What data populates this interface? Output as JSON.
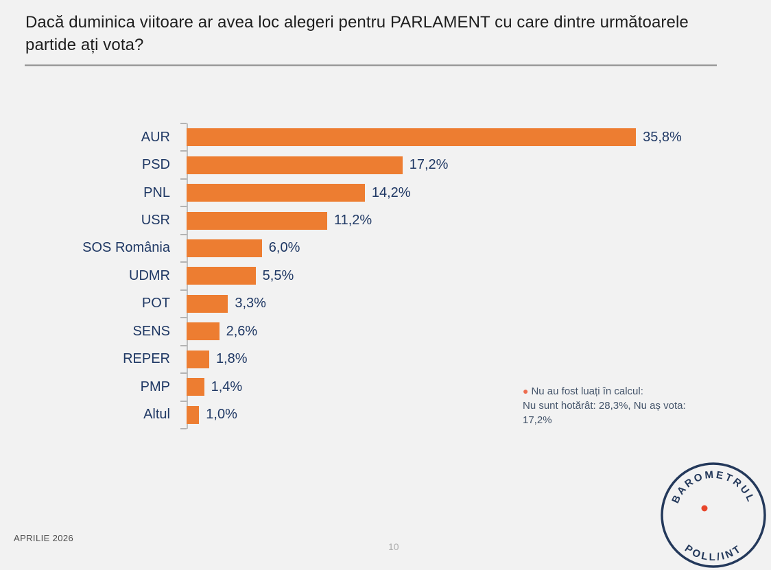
{
  "page": {
    "background_color": "#F2F2F2"
  },
  "header": {
    "title": "Dacă duminica viitoare ar avea loc alegeri pentru PARLAMENT cu care dintre următoarele partide ați vota?",
    "title_line1": "Dacă duminica viitoare ar avea loc alegeri pentru PARLAMENT cu care dintre următoarele",
    "title_line2": "partide ați vota?"
  },
  "chart_data": {
    "type": "bar",
    "orientation": "horizontal",
    "categories": [
      "AUR",
      "PSD",
      "PNL",
      "USR",
      "SOS România",
      "UDMR",
      "POT",
      "SENS",
      "REPER",
      "PMP",
      "Altul"
    ],
    "values": [
      35.8,
      17.2,
      14.2,
      11.2,
      6.0,
      5.5,
      3.3,
      2.6,
      1.8,
      1.4,
      1.0
    ],
    "value_labels": [
      "35,8%",
      "17,2%",
      "14,2%",
      "11,2%",
      "6,0%",
      "5,5%",
      "3,3%",
      "2,6%",
      "1,8%",
      "1,4%",
      "1,0%"
    ],
    "title": "",
    "xlabel": "",
    "ylabel": "",
    "xlim": [
      0,
      40
    ],
    "grid": false,
    "legend": false,
    "bar_color": "#ED7D31",
    "category_label_color": "#1F3864",
    "value_label_color": "#1F3864"
  },
  "note": {
    "bullet_color": "#ED6C4F",
    "title": "Nu au fost luați în calcul:",
    "body": "Nu sunt hotărât: 28,3%, Nu aș vota: 17,2%",
    "text_color": "#44546A"
  },
  "logo": {
    "top_text": "BAROMETRUL",
    "bottom_text": "POLL/INT",
    "ring_color": "#24395B",
    "dot_color": "#E8462B"
  },
  "footer": {
    "date": "APRILIE 2026",
    "page_number": "10"
  }
}
